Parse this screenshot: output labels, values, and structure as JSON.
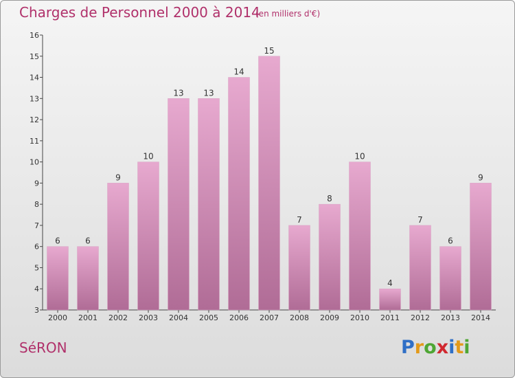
{
  "header": {
    "title": "Charges de Personnel 2000 à 2014",
    "subtitle": "(en milliers d'€)"
  },
  "footer": {
    "commune": "SéRON",
    "logo": {
      "p": "P",
      "r": "r",
      "o": "o",
      "x": "x",
      "i": "i",
      "t": "t",
      "i2": "i"
    }
  },
  "colors": {
    "title": "#b0306a",
    "bar_top": "#e7a9cf",
    "bar_bottom": "#b06c96",
    "background_top": "#f5f5f5",
    "background_bottom": "#dcdcdc"
  },
  "chart_data": {
    "type": "bar",
    "categories": [
      "2000",
      "2001",
      "2002",
      "2003",
      "2004",
      "2005",
      "2006",
      "2007",
      "2008",
      "2009",
      "2010",
      "2011",
      "2012",
      "2013",
      "2014"
    ],
    "values": [
      6,
      6,
      9,
      10,
      13,
      13,
      14,
      15,
      7,
      8,
      10,
      4,
      7,
      6,
      9
    ],
    "title": "Charges de Personnel 2000 à 2014",
    "subtitle": "(en milliers d'€)",
    "ylim": [
      3,
      16
    ],
    "yticks": [
      3,
      4,
      5,
      6,
      7,
      8,
      9,
      10,
      11,
      12,
      13,
      14,
      15,
      16
    ],
    "grid": false,
    "data_labels": true
  }
}
